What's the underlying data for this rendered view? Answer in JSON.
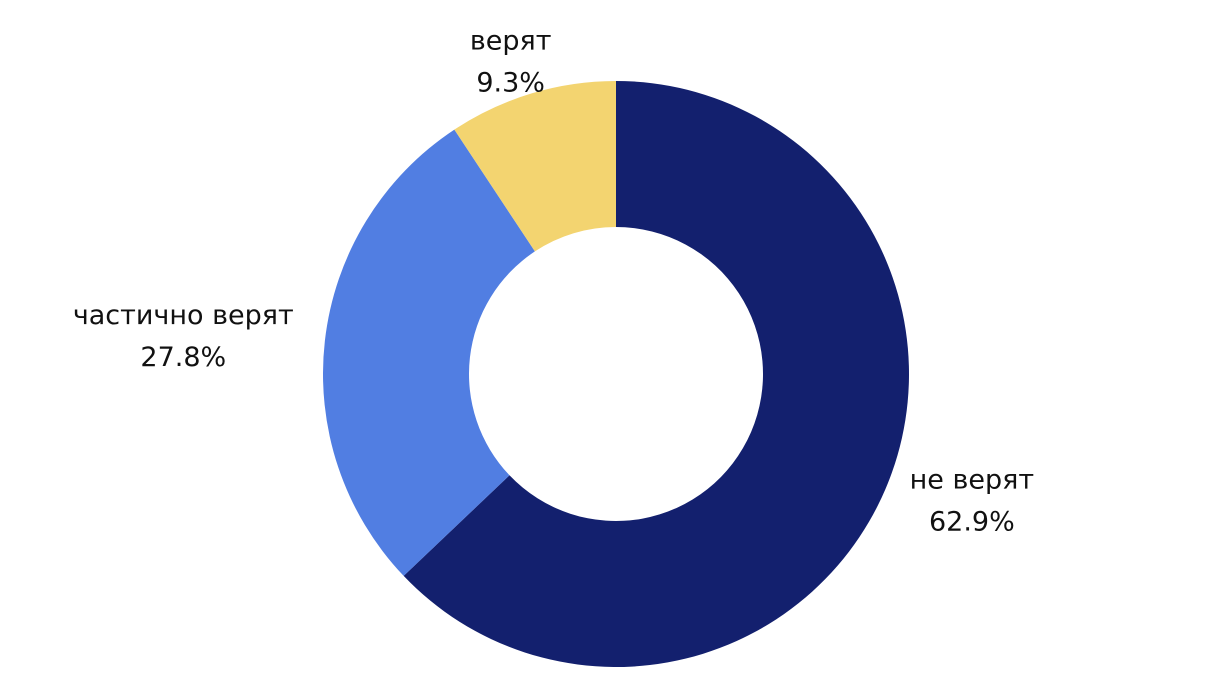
{
  "chart_data": {
    "type": "donut",
    "categories": [
      "не верят",
      "частично верят",
      "верят"
    ],
    "values": [
      62.9,
      27.8,
      9.3
    ],
    "value_labels": [
      "62.9%",
      "27.8%",
      "9.3%"
    ],
    "colors": [
      "#13206e",
      "#517ee2",
      "#f3d470"
    ]
  }
}
